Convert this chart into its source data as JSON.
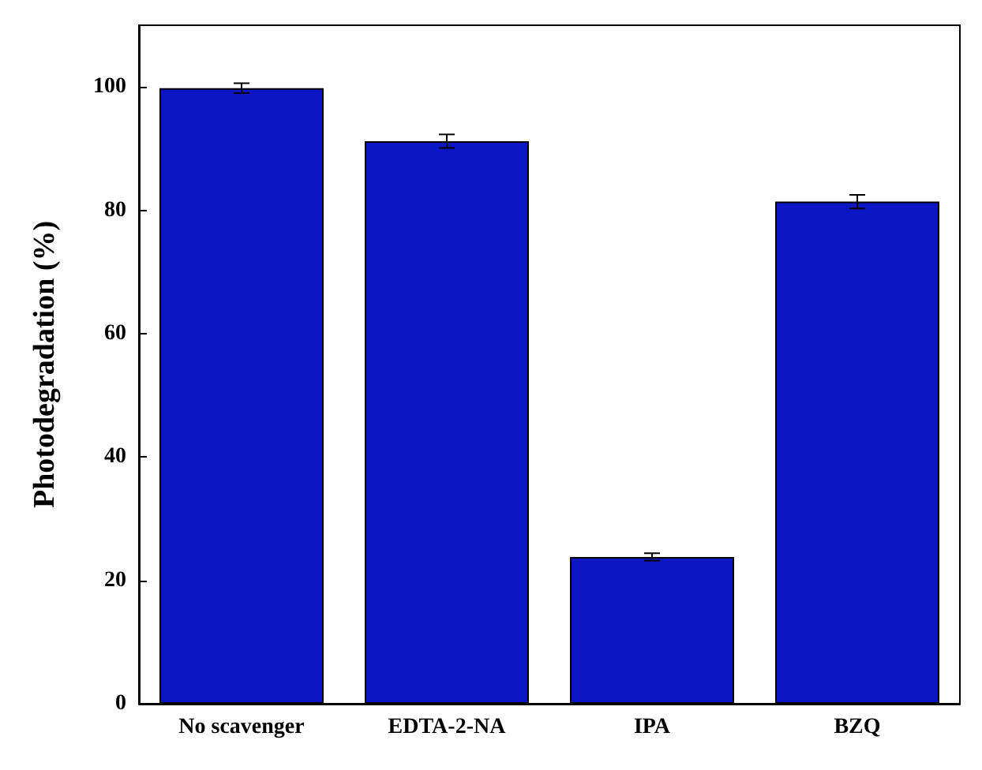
{
  "chart_data": {
    "type": "bar",
    "ylabel": "Photodegradation (%)",
    "categories": [
      "No scavenger",
      "EDTA-2-NA",
      "IPA",
      "BZQ"
    ],
    "values": [
      99.8,
      91.2,
      23.8,
      81.4
    ],
    "errors": [
      0.8,
      1.1,
      0.6,
      1.1
    ],
    "color": "#0c16c4",
    "ylim": [
      0,
      110
    ],
    "yticks": [
      0,
      20,
      40,
      60,
      80,
      100
    ],
    "grid": false
  }
}
